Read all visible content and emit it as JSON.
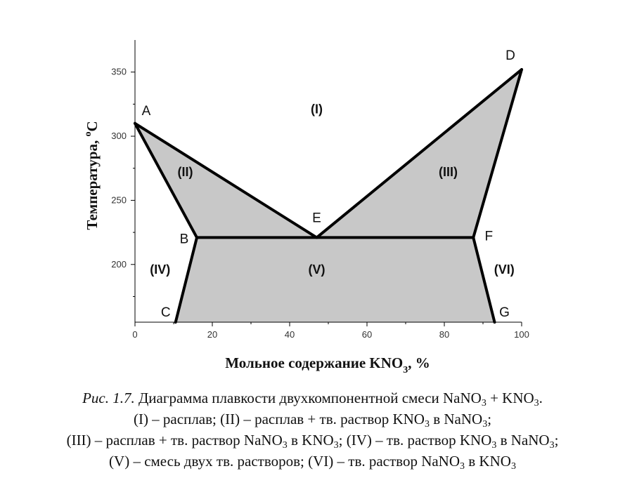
{
  "chart_data": {
    "type": "area",
    "xlabel": {
      "text": "Мольное содержание KNO",
      "sub": "3",
      "tail": ", %"
    },
    "ylabel": {
      "text": "Температура, ",
      "sup": "o",
      "tail": "C"
    },
    "xlim": [
      0,
      100
    ],
    "ylim": [
      155,
      375
    ],
    "xticks": [
      0,
      20,
      40,
      60,
      80,
      100
    ],
    "yticks": [
      200,
      250,
      300,
      350
    ],
    "grid": false,
    "points": [
      {
        "label": "A",
        "x": 0,
        "y": 310
      },
      {
        "label": "B",
        "x": 16,
        "y": 221
      },
      {
        "label": "C",
        "x": 10.5,
        "y": 155
      },
      {
        "label": "D",
        "x": 100,
        "y": 352
      },
      {
        "label": "E",
        "x": 47,
        "y": 221
      },
      {
        "label": "F",
        "x": 87.5,
        "y": 221
      },
      {
        "label": "G",
        "x": 93,
        "y": 155
      }
    ],
    "shaded_regions": [
      {
        "label": "(II)",
        "vertices": [
          "A",
          "B",
          "E"
        ]
      },
      {
        "label": "(III)",
        "vertices": [
          "D",
          "E",
          "F"
        ]
      },
      {
        "label": "(V)",
        "vertices": [
          "B",
          "F",
          "G",
          "C"
        ]
      }
    ],
    "lines": [
      [
        "A",
        "E"
      ],
      [
        "E",
        "D"
      ],
      [
        "B",
        "F"
      ],
      [
        "B",
        "C"
      ],
      [
        "F",
        "G"
      ],
      [
        "A",
        "B"
      ],
      [
        "D",
        "F"
      ]
    ],
    "region_labels": [
      {
        "text": "(I)",
        "x": 47,
        "y": 321
      },
      {
        "text": "(II)",
        "x": 13,
        "y": 272
      },
      {
        "text": "(III)",
        "x": 81,
        "y": 272
      },
      {
        "text": "(IV)",
        "x": 6.5,
        "y": 196
      },
      {
        "text": "(V)",
        "x": 47,
        "y": 196
      },
      {
        "text": "(VI)",
        "x": 95.5,
        "y": 196
      }
    ],
    "colors": {
      "fill": "#c8c8c8",
      "line": "#000000",
      "axis": "#000000"
    }
  },
  "caption": {
    "line1": {
      "label": "Рис. 1.7.",
      "text": " Диаграмма плавкости двухкомпонентной смеси NaNO",
      "sub1": "3",
      "mid": " + KNO",
      "sub2": "3",
      "end": "."
    },
    "line2": {
      "p1": "(I) – расплав; (II) – расплав + тв. раствор KNO",
      "s1": "3",
      "p2": " в NaNO",
      "s2": "3",
      "p3": ";"
    },
    "line3": {
      "p1": "(III) – расплав + тв. раствор NaNO",
      "s1": "3",
      "p2": " в KNO",
      "s2": "3",
      "p3": "; (IV) – тв. раствор KNO",
      "s3": "3",
      "p4": " в NaNO",
      "s4": "3",
      "p5": ";"
    },
    "line4": {
      "p1": "(V) – смесь двух тв. растворов; (VI) – тв. раствор NaNO",
      "s1": "3",
      "p2": " в KNO",
      "s2": "3"
    }
  }
}
